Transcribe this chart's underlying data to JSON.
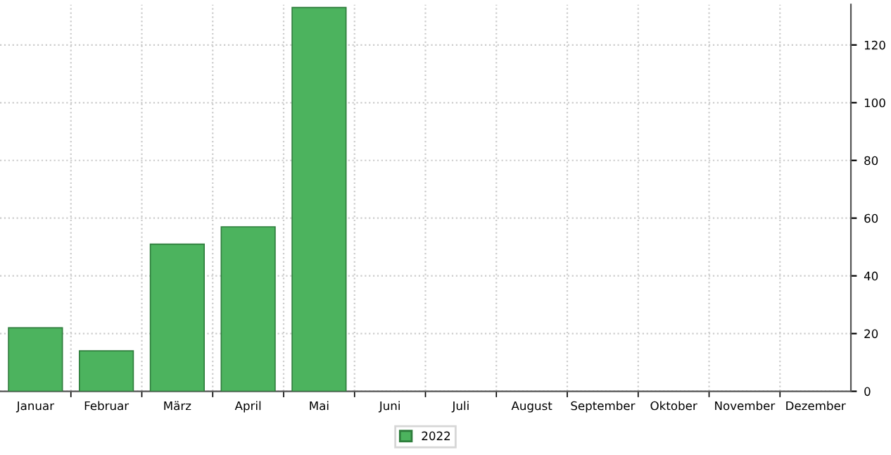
{
  "chart_data": {
    "type": "bar",
    "categories": [
      "Januar",
      "Februar",
      "März",
      "April",
      "Mai",
      "Juni",
      "Juli",
      "August",
      "September",
      "Oktober",
      "November",
      "Dezember"
    ],
    "series": [
      {
        "name": "2022",
        "color": "#4cb35e",
        "values": [
          22,
          14,
          51,
          57,
          133,
          null,
          null,
          null,
          null,
          null,
          null,
          null
        ]
      }
    ],
    "ylim": [
      0,
      134
    ],
    "yticks": [
      0,
      20,
      40,
      60,
      80,
      100,
      120
    ],
    "grid": true,
    "legend": "bottom"
  }
}
